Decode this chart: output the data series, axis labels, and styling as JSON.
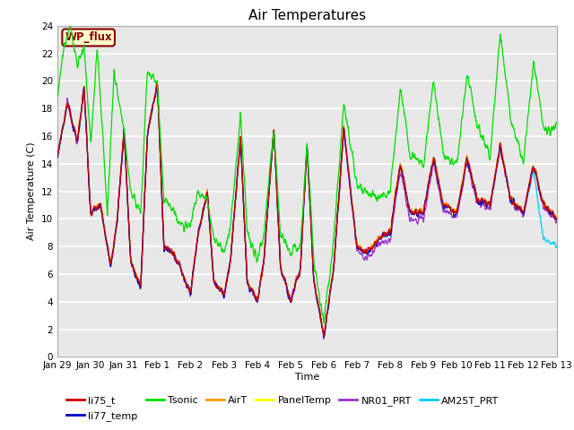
{
  "title": "Air Temperatures",
  "xlabel": "Time",
  "ylabel": "Air Temperature (C)",
  "ylim": [
    0,
    24
  ],
  "yticks": [
    0,
    2,
    4,
    6,
    8,
    10,
    12,
    14,
    16,
    18,
    20,
    22,
    24
  ],
  "bg_color": "#e8e8e8",
  "fig_color": "#ffffff",
  "annotation_text": "WP_flux",
  "annotation_bg": "#ffffcc",
  "annotation_border": "#8B0000",
  "series_colors": {
    "li75_t": "#cc0000",
    "li77_temp": "#0000cc",
    "Tsonic": "#00dd00",
    "AirT": "#ff9900",
    "PanelTemp": "#ffff00",
    "NR01_PRT": "#9933cc",
    "AM25T_PRT": "#00ccff"
  },
  "xtick_labels": [
    "Jan 29",
    "Jan 30",
    "Jan 31",
    "Feb 1",
    "Feb 2",
    "Feb 3",
    "Feb 4",
    "Feb 5",
    "Feb 6",
    "Feb 7",
    "Feb 8",
    "Feb 9",
    "Feb 10",
    "Feb 11",
    "Feb 12",
    "Feb 13"
  ],
  "xtick_positions": [
    0,
    1,
    2,
    3,
    4,
    5,
    6,
    7,
    8,
    9,
    10,
    11,
    12,
    13,
    14,
    15
  ]
}
